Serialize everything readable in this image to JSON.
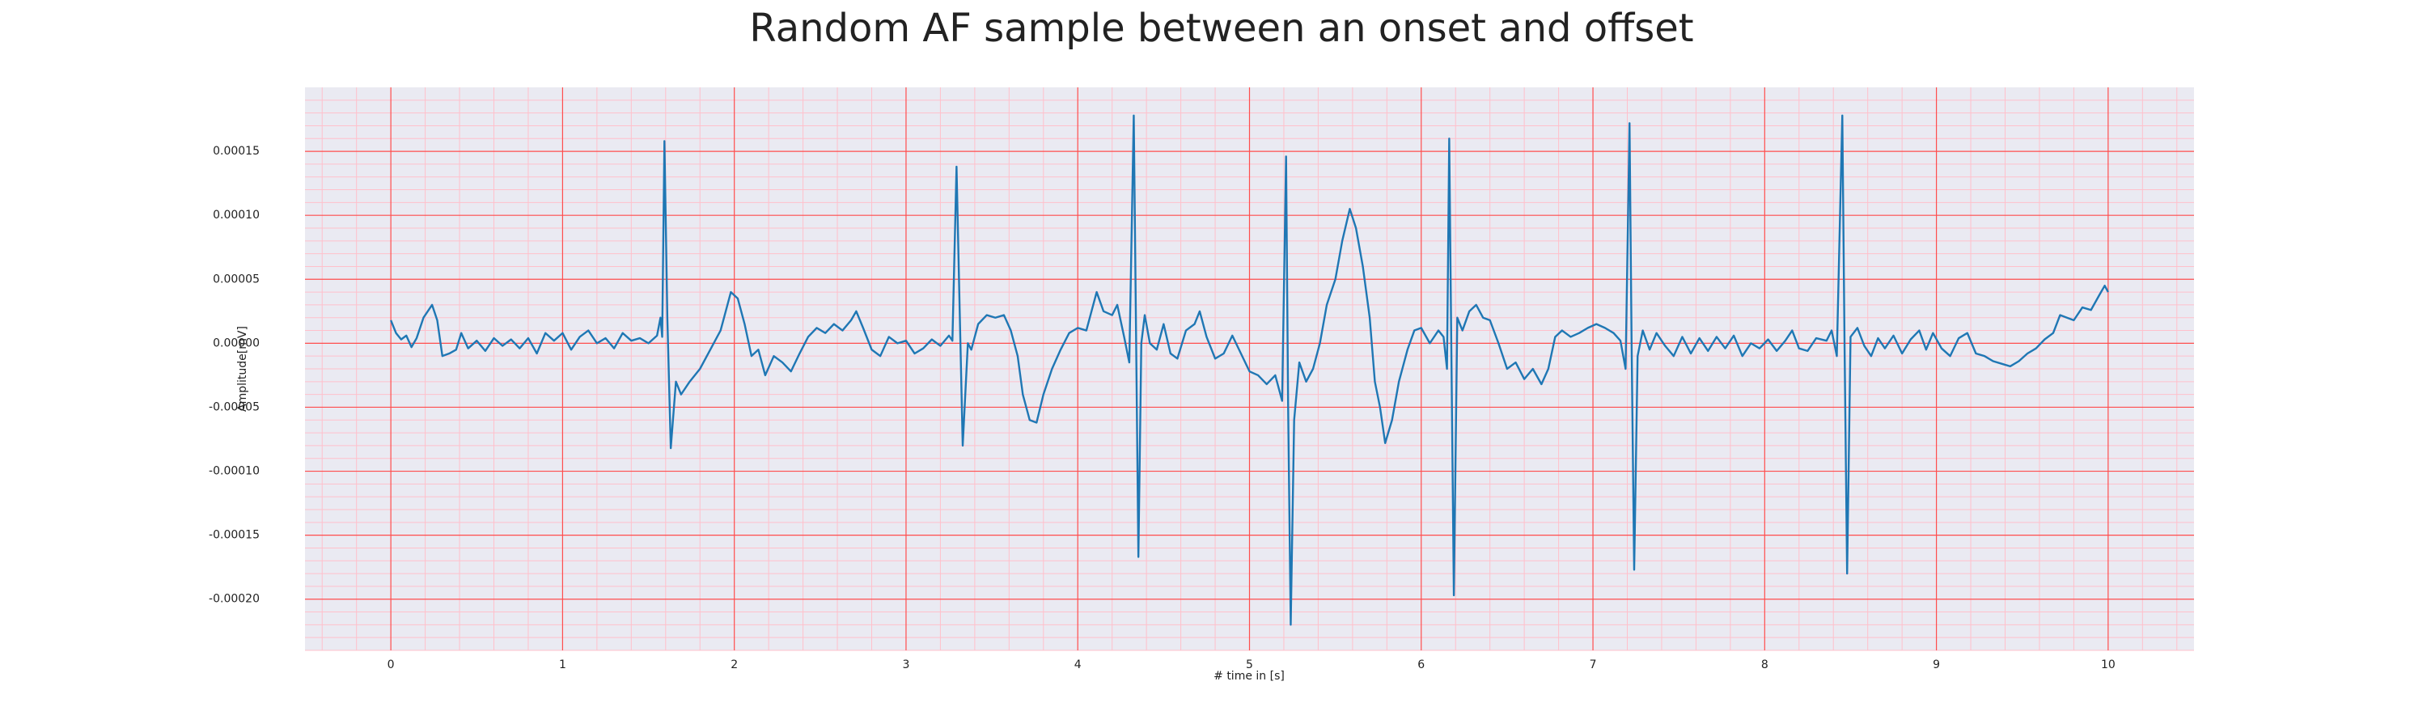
{
  "chart_data": {
    "type": "line",
    "title": "Random AF sample between an onset and offset",
    "xlabel": "# time in [s]",
    "ylabel": "Amplitude[mV]",
    "color": "#1f77b4",
    "background": "#eaeaf2",
    "grid": true,
    "grid_color": "#ff4d4d",
    "minor_grid": true,
    "minor_grid_color": "#ffc0cb",
    "minor_grid_divisions": 5,
    "xlim": [
      -0.5,
      10.5
    ],
    "xticks": [
      0,
      1,
      2,
      3,
      4,
      5,
      6,
      7,
      8,
      9,
      10
    ],
    "ylim": [
      -0.00024,
      0.0002
    ],
    "yticks": [
      {
        "value": -0.0002,
        "label": "-0.00020"
      },
      {
        "value": -0.00015,
        "label": "-0.00015"
      },
      {
        "value": -0.0001,
        "label": "-0.00010"
      },
      {
        "value": -5e-05,
        "label": "-0.00005"
      },
      {
        "value": 0,
        "label": "0.00000"
      },
      {
        "value": 5e-05,
        "label": "0.00005"
      },
      {
        "value": 0.0001,
        "label": "0.00010"
      },
      {
        "value": 0.00015,
        "label": "0.00015"
      }
    ],
    "x": [
      0,
      0.03,
      0.06,
      0.09,
      0.12,
      0.15,
      0.19,
      0.24,
      0.27,
      0.3,
      0.34,
      0.38,
      0.41,
      0.45,
      0.5,
      0.55,
      0.6,
      0.65,
      0.7,
      0.75,
      0.8,
      0.85,
      0.9,
      0.95,
      1.0,
      1.05,
      1.1,
      1.15,
      1.2,
      1.25,
      1.3,
      1.35,
      1.4,
      1.45,
      1.5,
      1.55,
      1.57,
      1.58,
      1.593,
      1.61,
      1.63,
      1.66,
      1.69,
      1.74,
      1.8,
      1.86,
      1.92,
      1.98,
      2.02,
      2.06,
      2.1,
      2.14,
      2.18,
      2.23,
      2.28,
      2.33,
      2.38,
      2.43,
      2.48,
      2.53,
      2.58,
      2.63,
      2.68,
      2.71,
      2.75,
      2.8,
      2.85,
      2.9,
      2.95,
      3.0,
      3.05,
      3.1,
      3.15,
      3.2,
      3.25,
      3.27,
      3.294,
      3.31,
      3.33,
      3.36,
      3.38,
      3.42,
      3.47,
      3.52,
      3.57,
      3.61,
      3.65,
      3.68,
      3.72,
      3.76,
      3.8,
      3.85,
      3.9,
      3.95,
      4.0,
      4.05,
      4.09,
      4.11,
      4.15,
      4.2,
      4.23,
      4.27,
      4.3,
      4.326,
      4.34,
      4.353,
      4.37,
      4.39,
      4.42,
      4.46,
      4.5,
      4.54,
      4.58,
      4.63,
      4.68,
      4.71,
      4.75,
      4.8,
      4.85,
      4.9,
      4.95,
      5.0,
      5.05,
      5.1,
      5.15,
      5.19,
      5.213,
      5.225,
      5.24,
      5.26,
      5.29,
      5.33,
      5.37,
      5.41,
      5.45,
      5.5,
      5.54,
      5.584,
      5.62,
      5.66,
      5.7,
      5.73,
      5.76,
      5.79,
      5.83,
      5.87,
      5.92,
      5.96,
      6.0,
      6.05,
      6.1,
      6.13,
      6.15,
      6.163,
      6.175,
      6.19,
      6.21,
      6.24,
      6.28,
      6.32,
      6.36,
      6.4,
      6.45,
      6.5,
      6.55,
      6.6,
      6.65,
      6.7,
      6.74,
      6.78,
      6.82,
      6.87,
      6.92,
      6.97,
      7.02,
      7.07,
      7.12,
      7.16,
      7.19,
      7.213,
      7.225,
      7.24,
      7.26,
      7.29,
      7.33,
      7.37,
      7.42,
      7.47,
      7.52,
      7.57,
      7.62,
      7.67,
      7.72,
      7.77,
      7.82,
      7.87,
      7.92,
      7.97,
      8.02,
      8.07,
      8.12,
      8.16,
      8.2,
      8.25,
      8.3,
      8.36,
      8.39,
      8.42,
      8.452,
      8.465,
      8.48,
      8.5,
      8.54,
      8.58,
      8.62,
      8.66,
      8.7,
      8.75,
      8.8,
      8.85,
      8.9,
      8.94,
      8.98,
      9.03,
      9.08,
      9.13,
      9.18,
      9.23,
      9.28,
      9.33,
      9.38,
      9.43,
      9.48,
      9.53,
      9.58,
      9.63,
      9.68,
      9.72,
      9.76,
      9.8,
      9.85,
      9.9,
      9.95,
      9.98,
      10.0
    ],
    "values": [
      1.8e-05,
      8e-06,
      3e-06,
      6e-06,
      -3e-06,
      4e-06,
      2e-05,
      3e-05,
      1.8e-05,
      -1e-05,
      -8e-06,
      -5e-06,
      8e-06,
      -4e-06,
      2e-06,
      -6e-06,
      4e-06,
      -2e-06,
      3e-06,
      -4e-06,
      4e-06,
      -8e-06,
      8e-06,
      2e-06,
      8e-06,
      -5e-06,
      5e-06,
      1e-05,
      0,
      4e-06,
      -4e-06,
      8e-06,
      2e-06,
      4e-06,
      0,
      6e-06,
      2e-05,
      5e-06,
      0.000158,
      2e-05,
      -8.2e-05,
      -3e-05,
      -4e-05,
      -3e-05,
      -2e-05,
      -5e-06,
      1e-05,
      4e-05,
      3.5e-05,
      1.5e-05,
      -1e-05,
      -5e-06,
      -2.5e-05,
      -1e-05,
      -1.5e-05,
      -2.2e-05,
      -8e-06,
      5e-06,
      1.2e-05,
      8e-06,
      1.5e-05,
      1e-05,
      1.8e-05,
      2.5e-05,
      1.2e-05,
      -5e-06,
      -1e-05,
      5e-06,
      0,
      2e-06,
      -8e-06,
      -4e-06,
      3e-06,
      -2e-06,
      6e-06,
      2e-06,
      0.000138,
      4e-05,
      -8e-05,
      0,
      -5e-06,
      1.5e-05,
      2.2e-05,
      2e-05,
      2.2e-05,
      1e-05,
      -1e-05,
      -4e-05,
      -6e-05,
      -6.2e-05,
      -4e-05,
      -2e-05,
      -5e-06,
      8e-06,
      1.2e-05,
      1e-05,
      3e-05,
      4e-05,
      2.5e-05,
      2.2e-05,
      3e-05,
      5e-06,
      -1.5e-05,
      0.000178,
      0,
      -0.000167,
      0,
      2.2e-05,
      0,
      -5e-06,
      1.5e-05,
      -8e-06,
      -1.2e-05,
      1e-05,
      1.5e-05,
      2.5e-05,
      5e-06,
      -1.2e-05,
      -8e-06,
      6e-06,
      -8e-06,
      -2.2e-05,
      -2.5e-05,
      -3.2e-05,
      -2.5e-05,
      -4.5e-05,
      0.000146,
      -5e-05,
      -0.00022,
      -6e-05,
      -1.5e-05,
      -3e-05,
      -2e-05,
      0,
      3e-05,
      5e-05,
      8e-05,
      0.000105,
      9e-05,
      6e-05,
      2e-05,
      -3e-05,
      -5e-05,
      -7.8e-05,
      -6e-05,
      -3e-05,
      -5e-06,
      1e-05,
      1.2e-05,
      0,
      1e-05,
      5e-06,
      -2e-05,
      0.00016,
      0,
      -0.000197,
      2e-05,
      1e-05,
      2.5e-05,
      3e-05,
      2e-05,
      1.8e-05,
      0,
      -2e-05,
      -1.5e-05,
      -2.8e-05,
      -2e-05,
      -3.2e-05,
      -2e-05,
      5e-06,
      1e-05,
      5e-06,
      8e-06,
      1.2e-05,
      1.5e-05,
      1.2e-05,
      8e-06,
      2e-06,
      -2e-05,
      0.000172,
      0,
      -0.000177,
      -1e-05,
      1e-05,
      -5e-06,
      8e-06,
      -2e-06,
      -1e-05,
      5e-06,
      -8e-06,
      4e-06,
      -6e-06,
      5e-06,
      -4e-06,
      6e-06,
      -1e-05,
      0,
      -4e-06,
      3e-06,
      -6e-06,
      2e-06,
      1e-05,
      -4e-06,
      -6e-06,
      4e-06,
      2e-06,
      1e-05,
      -1e-05,
      0.000178,
      0,
      -0.00018,
      5e-06,
      1.2e-05,
      -2e-06,
      -1e-05,
      4e-06,
      -4e-06,
      6e-06,
      -8e-06,
      3e-06,
      1e-05,
      -5e-06,
      8e-06,
      -4e-06,
      -1e-05,
      4e-06,
      8e-06,
      -8e-06,
      -1e-05,
      -1.4e-05,
      -1.6e-05,
      -1.8e-05,
      -1.4e-05,
      -8e-06,
      -4e-06,
      3e-06,
      8e-06,
      2.2e-05,
      2e-05,
      1.8e-05,
      2.8e-05,
      2.6e-05,
      3.8e-05,
      4.5e-05,
      4e-05
    ]
  }
}
